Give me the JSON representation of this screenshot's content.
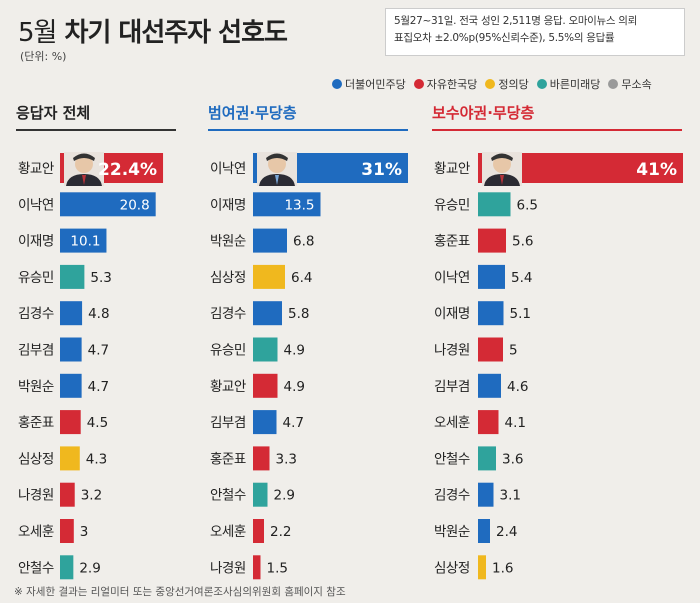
{
  "title_num": "5월",
  "title_text": "차기 대선주자 선호도",
  "unit": "(단위: %)",
  "note_line1": "5월27~31일. 전국 성인 2,511명 응답. 오마이뉴스 의뢰",
  "note_line2": "표집오차 ±2.0%p(95%신뢰수준), 5.5%의 응답률",
  "legend": [
    {
      "label": "더불어민주당",
      "color": "#1f6bbf"
    },
    {
      "label": "자유한국당",
      "color": "#d42a35"
    },
    {
      "label": "정의당",
      "color": "#f0b81e"
    },
    {
      "label": "바른미래당",
      "color": "#2fa39c"
    },
    {
      "label": "무소속",
      "color": "#9a9a9a"
    }
  ],
  "footer": "※ 자세한 결과는 리얼미터 또는 중앙선거여론조사심의위원회 홈페이지 참조",
  "chart_data": [
    {
      "type": "bar",
      "title": "응답자 전체",
      "categories": [
        "황교안",
        "이낙연",
        "이재명",
        "유승민",
        "김경수",
        "김부겸",
        "박원순",
        "홍준표",
        "심상정",
        "나경원",
        "오세훈",
        "안철수"
      ],
      "values": [
        22.4,
        20.8,
        10.1,
        5.3,
        4.8,
        4.7,
        4.7,
        4.5,
        4.3,
        3.2,
        3,
        2.9
      ],
      "labels": [
        "22.4%",
        "20.8",
        "10.1",
        "5.3",
        "4.8",
        "4.7",
        "4.7",
        "4.5",
        "4.3",
        "3.2",
        "3",
        "2.9"
      ],
      "parties": [
        "자유한국당",
        "더불어민주당",
        "더불어민주당",
        "바른미래당",
        "더불어민주당",
        "더불어민주당",
        "더불어민주당",
        "자유한국당",
        "정의당",
        "자유한국당",
        "자유한국당",
        "바른미래당"
      ]
    },
    {
      "type": "bar",
      "title": "범여권·무당층",
      "categories": [
        "이낙연",
        "이재명",
        "박원순",
        "심상정",
        "김경수",
        "유승민",
        "황교안",
        "김부겸",
        "홍준표",
        "안철수",
        "오세훈",
        "나경원"
      ],
      "values": [
        31,
        13.5,
        6.8,
        6.4,
        5.8,
        4.9,
        4.9,
        4.7,
        3.3,
        2.9,
        2.2,
        1.5
      ],
      "labels": [
        "31%",
        "13.5",
        "6.8",
        "6.4",
        "5.8",
        "4.9",
        "4.9",
        "4.7",
        "3.3",
        "2.9",
        "2.2",
        "1.5"
      ],
      "parties": [
        "더불어민주당",
        "더불어민주당",
        "더불어민주당",
        "정의당",
        "더불어민주당",
        "바른미래당",
        "자유한국당",
        "더불어민주당",
        "자유한국당",
        "바른미래당",
        "자유한국당",
        "자유한국당"
      ]
    },
    {
      "type": "bar",
      "title": "보수야권·무당층",
      "categories": [
        "황교안",
        "유승민",
        "홍준표",
        "이낙연",
        "이재명",
        "나경원",
        "김부겸",
        "오세훈",
        "안철수",
        "김경수",
        "박원순",
        "심상정"
      ],
      "values": [
        41,
        6.5,
        5.6,
        5.4,
        5.1,
        5,
        4.6,
        4.1,
        3.6,
        3.1,
        2.4,
        1.6
      ],
      "labels": [
        "41%",
        "6.5",
        "5.6",
        "5.4",
        "5.1",
        "5",
        "4.6",
        "4.1",
        "3.6",
        "3.1",
        "2.4",
        "1.6"
      ],
      "parties": [
        "자유한국당",
        "바른미래당",
        "자유한국당",
        "더불어민주당",
        "더불어민주당",
        "자유한국당",
        "더불어민주당",
        "자유한국당",
        "바른미래당",
        "더불어민주당",
        "더불어민주당",
        "정의당"
      ]
    }
  ]
}
